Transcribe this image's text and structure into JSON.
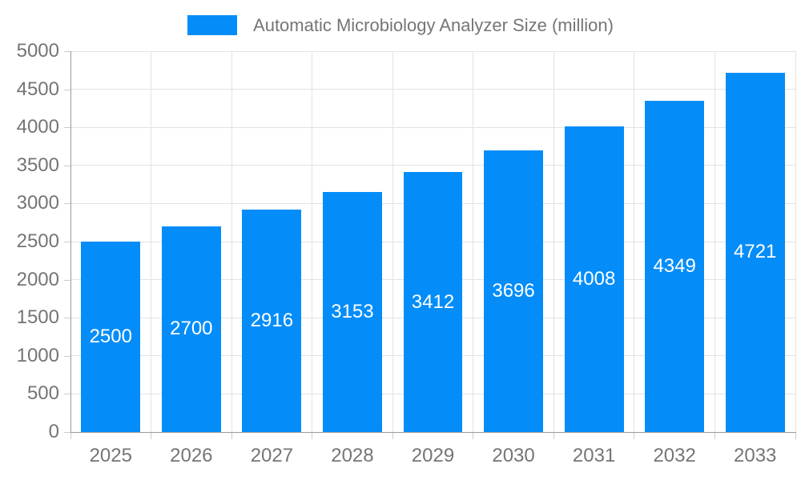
{
  "chart_data": {
    "type": "bar",
    "title": "Automatic Microbiology Analyzer Size (million)",
    "categories": [
      "2025",
      "2026",
      "2027",
      "2028",
      "2029",
      "2030",
      "2031",
      "2032",
      "2033"
    ],
    "values": [
      2500,
      2700,
      2916,
      3153,
      3412,
      3696,
      4008,
      4349,
      4721
    ],
    "xlabel": "",
    "ylabel": "",
    "ylim": [
      0,
      5000
    ],
    "ytick_step": 500,
    "grid": true,
    "legend_position": "top-center",
    "bar_width_ratio": 0.735,
    "colors": {
      "bar": "#048df8",
      "bar_value_text": "#ffffff",
      "axis_line": "#999999",
      "gridline": "#e3e3e3",
      "tick": "#cccccc",
      "axis_text": "#757575",
      "legend_text": "#757575",
      "background": "#ffffff"
    }
  }
}
